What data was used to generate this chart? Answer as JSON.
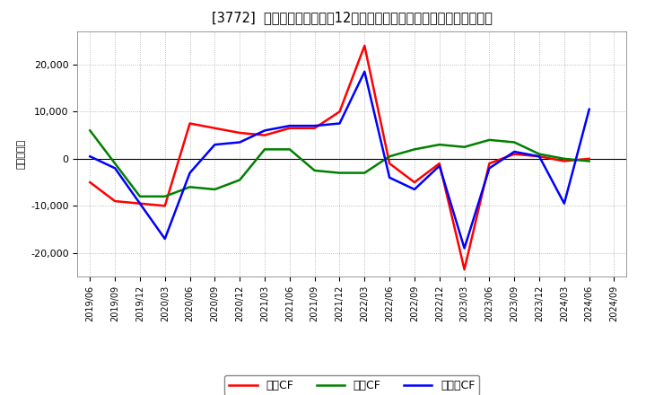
{
  "title": "[3772]  キャッシュフローの12か月移動合計の対前年同期増減額の推移",
  "ylabel": "（百万円）",
  "background_color": "#ffffff",
  "grid_color": "#aaaaaa",
  "x_labels": [
    "2019/06",
    "2019/09",
    "2019/12",
    "2020/03",
    "2020/06",
    "2020/09",
    "2020/12",
    "2021/03",
    "2021/06",
    "2021/09",
    "2021/12",
    "2022/03",
    "2022/06",
    "2022/09",
    "2022/12",
    "2023/03",
    "2023/06",
    "2023/09",
    "2023/12",
    "2024/03",
    "2024/06",
    "2024/09"
  ],
  "operating_cf": [
    -5000,
    -9000,
    -9500,
    -10000,
    7500,
    6500,
    5500,
    5000,
    6500,
    6500,
    10000,
    24000,
    -1000,
    -5000,
    -1000,
    -23500,
    -1000,
    1000,
    500,
    -500,
    0,
    null
  ],
  "investing_cf": [
    6000,
    -1000,
    -8000,
    -8000,
    -6000,
    -6500,
    -4500,
    2000,
    2000,
    -2500,
    -3000,
    -3000,
    500,
    2000,
    3000,
    2500,
    4000,
    3500,
    1000,
    0,
    -500,
    null
  ],
  "free_cf": [
    500,
    -2000,
    -9500,
    -17000,
    -3000,
    3000,
    3500,
    6000,
    7000,
    7000,
    7500,
    18500,
    -4000,
    -6500,
    -1500,
    -19000,
    -2000,
    1500,
    500,
    -9500,
    10500,
    null
  ],
  "operating_color": "#ff0000",
  "investing_color": "#008000",
  "free_color": "#0000ff",
  "line_width": 1.8,
  "ylim": [
    -25000,
    27000
  ],
  "yticks": [
    -20000,
    -10000,
    0,
    10000,
    20000
  ],
  "legend_labels": [
    "営業CF",
    "投資CF",
    "フリーCF"
  ]
}
